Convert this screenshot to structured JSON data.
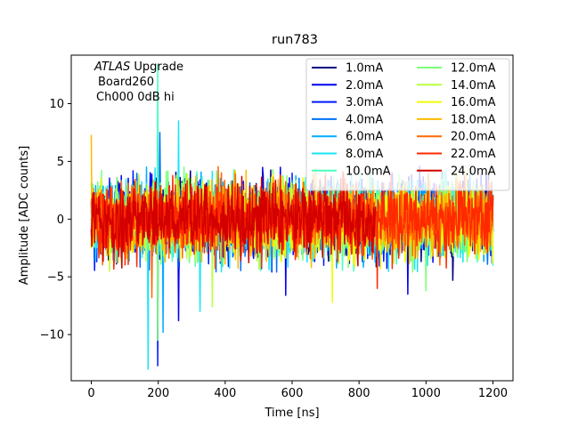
{
  "chart_data": {
    "type": "line",
    "title": "run783",
    "xlabel": "Time [ns]",
    "ylabel": "Amplitude [ADC counts]",
    "xlim": [
      -60,
      1260
    ],
    "ylim": [
      -14.0,
      14.2
    ],
    "xticks": [
      0,
      200,
      400,
      600,
      800,
      1000,
      1200
    ],
    "yticks": [
      -10,
      -5,
      0,
      5,
      10
    ],
    "annotation": {
      "line1_italic": "ATLAS",
      "line1_rest": " Upgrade",
      "line2": "Board260",
      "line3": "Ch000 0dB hi"
    },
    "legend_position": "upper right",
    "series": [
      {
        "name": "1.0mA",
        "color": "#00007f",
        "span": 1200,
        "amp": 2.0
      },
      {
        "name": "2.0mA",
        "color": "#0000f0",
        "span": 1200,
        "amp": 2.0
      },
      {
        "name": "3.0mA",
        "color": "#0018ff",
        "span": 1200,
        "amp": 2.0
      },
      {
        "name": "4.0mA",
        "color": "#0070ff",
        "span": 1200,
        "amp": 2.0
      },
      {
        "name": "6.0mA",
        "color": "#00acff",
        "span": 1200,
        "amp": 2.0
      },
      {
        "name": "8.0mA",
        "color": "#1ae4f8",
        "span": 1200,
        "amp": 2.0
      },
      {
        "name": "10.0mA",
        "color": "#4affbe",
        "span": 1200,
        "amp": 2.0
      },
      {
        "name": "12.0mA",
        "color": "#7dff7a",
        "span": 1200,
        "amp": 2.0
      },
      {
        "name": "14.0mA",
        "color": "#b9ff3e",
        "span": 1200,
        "amp": 2.0
      },
      {
        "name": "16.0mA",
        "color": "#f1fc06",
        "span": 1200,
        "amp": 2.0
      },
      {
        "name": "18.0mA",
        "color": "#ffb900",
        "span": 1200,
        "amp": 2.0
      },
      {
        "name": "20.0mA",
        "color": "#ff6800",
        "span": 1200,
        "amp": 2.0
      },
      {
        "name": "22.0mA",
        "color": "#ff2900",
        "span": 1200,
        "amp": 2.0
      },
      {
        "name": "24.0mA",
        "color": "#d40000",
        "span": 850,
        "amp": 2.0
      }
    ],
    "spikes": [
      {
        "series": 5,
        "x": 170,
        "y": -13.0
      },
      {
        "series": 2,
        "x": 198,
        "y": -12.7
      },
      {
        "series": 6,
        "x": 198,
        "y": 13.4
      },
      {
        "series": 7,
        "x": 198,
        "y": -10.5
      },
      {
        "series": 4,
        "x": 215,
        "y": -9.8
      },
      {
        "series": 1,
        "x": 260,
        "y": -8.8
      },
      {
        "series": 5,
        "x": 260,
        "y": 8.5
      },
      {
        "series": 3,
        "x": 205,
        "y": 7.5
      },
      {
        "series": 10,
        "x": 0,
        "y": 7.3
      },
      {
        "series": 5,
        "x": 325,
        "y": -8.0
      },
      {
        "series": 11,
        "x": 180,
        "y": 7.0
      },
      {
        "series": 8,
        "x": 362,
        "y": -7.6
      },
      {
        "series": 9,
        "x": 720,
        "y": -7.2
      },
      {
        "series": 1,
        "x": 580,
        "y": -6.6
      },
      {
        "series": 0,
        "x": 1080,
        "y": -5.3
      },
      {
        "series": 1,
        "x": 945,
        "y": -6.5
      },
      {
        "series": 7,
        "x": 1000,
        "y": -6.2
      },
      {
        "series": 11,
        "x": 180,
        "y": -6.8
      },
      {
        "series": 12,
        "x": 855,
        "y": -6.0
      }
    ]
  }
}
